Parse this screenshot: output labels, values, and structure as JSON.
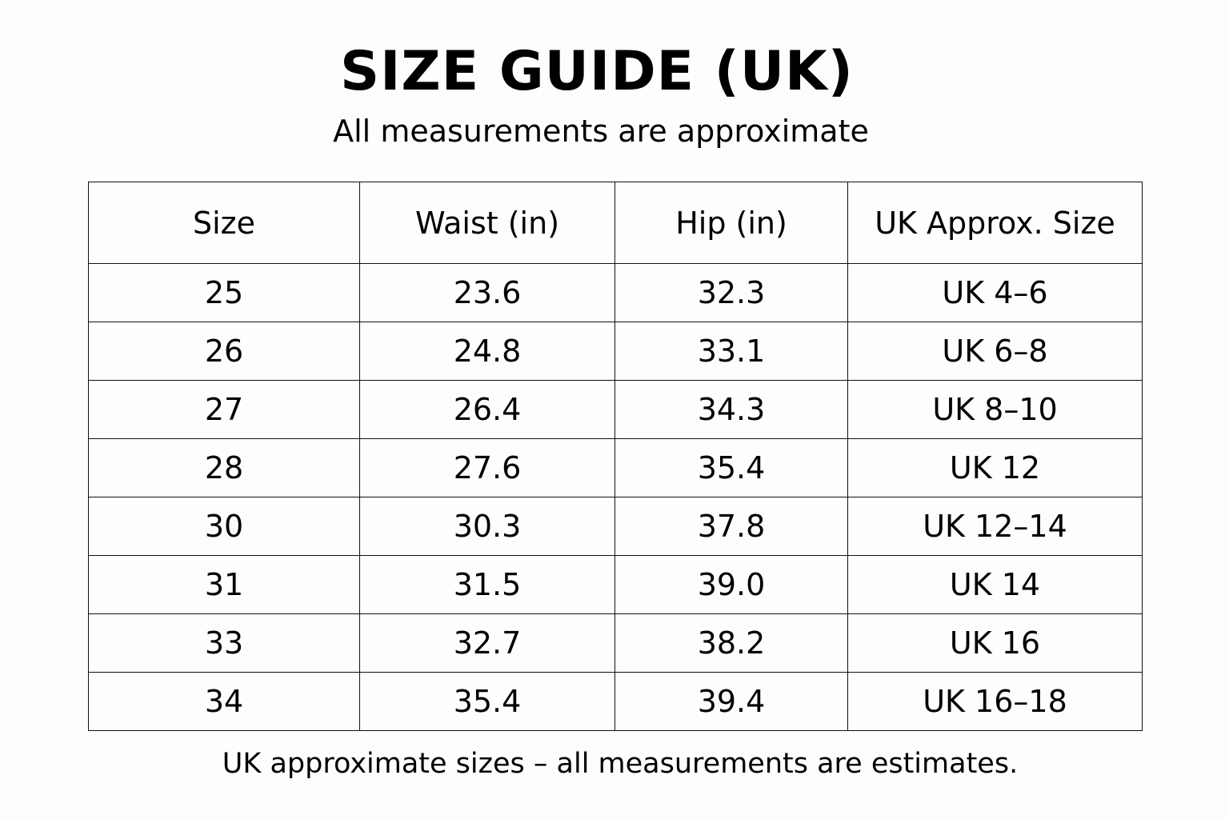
{
  "title": "SIZE GUIDE (UK)",
  "subtitle": "All measurements are approximate",
  "table": {
    "headers": [
      "Size",
      "Waist (in)",
      "Hip (in)",
      "UK Approx. Size"
    ],
    "rows": [
      [
        "25",
        "23.6",
        "32.3",
        "UK 4–6"
      ],
      [
        "26",
        "24.8",
        "33.1",
        "UK 6–8"
      ],
      [
        "27",
        "26.4",
        "34.3",
        "UK 8–10"
      ],
      [
        "28",
        "27.6",
        "35.4",
        "UK 12"
      ],
      [
        "30",
        "30.3",
        "37.8",
        "UK 12–14"
      ],
      [
        "31",
        "31.5",
        "39.0",
        "UK 14"
      ],
      [
        "33",
        "32.7",
        "38.2",
        "UK 16"
      ],
      [
        "34",
        "35.4",
        "39.4",
        "UK 16–18"
      ]
    ]
  },
  "footer": "UK approximate sizes – all measurements are estimates."
}
